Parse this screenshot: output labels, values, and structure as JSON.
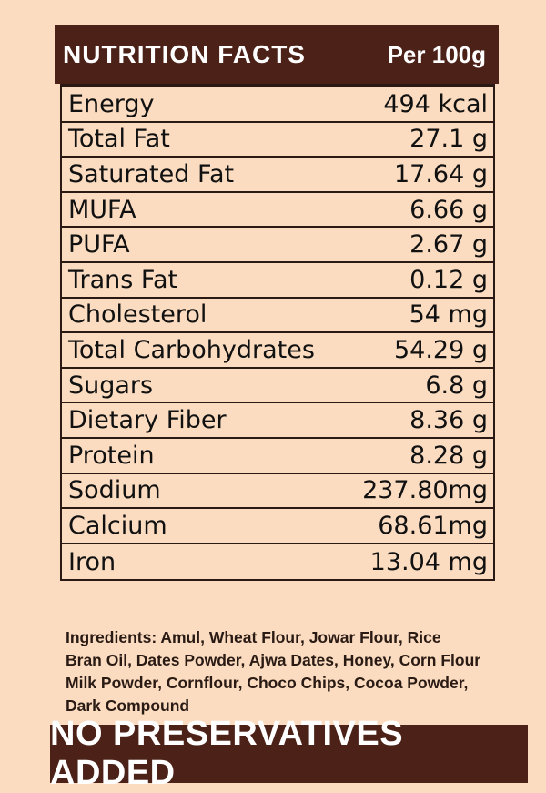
{
  "header": {
    "title": "NUTRITION FACTS",
    "per": "Per 100g"
  },
  "rows": [
    {
      "name": "Energy",
      "value": "494 kcal"
    },
    {
      "name": "Total Fat",
      "value": "27.1 g"
    },
    {
      "name": "Saturated Fat",
      "value": "17.64 g"
    },
    {
      "name": "MUFA",
      "value": "6.66 g"
    },
    {
      "name": "PUFA",
      "value": "2.67 g"
    },
    {
      "name": "Trans Fat",
      "value": "0.12 g"
    },
    {
      "name": "Cholesterol",
      "value": "54 mg"
    },
    {
      "name": "Total Carbohydrates",
      "value": "54.29 g"
    },
    {
      "name": "Sugars",
      "value": "6.8 g"
    },
    {
      "name": "Dietary Fiber",
      "value": "8.36 g"
    },
    {
      "name": "Protein",
      "value": "8.28 g"
    },
    {
      "name": "Sodium",
      "value": "237.80mg"
    },
    {
      "name": "Calcium",
      "value": "68.61mg"
    },
    {
      "name": "Iron",
      "value": "13.04 mg"
    }
  ],
  "ingredients": {
    "lines": [
      "Ingredients: Amul, Wheat Flour, Jowar Flour, Rice",
      "Bran Oil, Dates Powder, Ajwa Dates, Honey, Corn Flour",
      "Milk Powder, Cornflour, Choco Chips, Cocoa Powder,",
      "Dark Compound"
    ]
  },
  "footer": {
    "text": "NO PRESERVATIVES ADDED"
  },
  "colors": {
    "background": "#fbdcc0",
    "brand_brown": "#4b2118",
    "border": "#2b1a14"
  }
}
